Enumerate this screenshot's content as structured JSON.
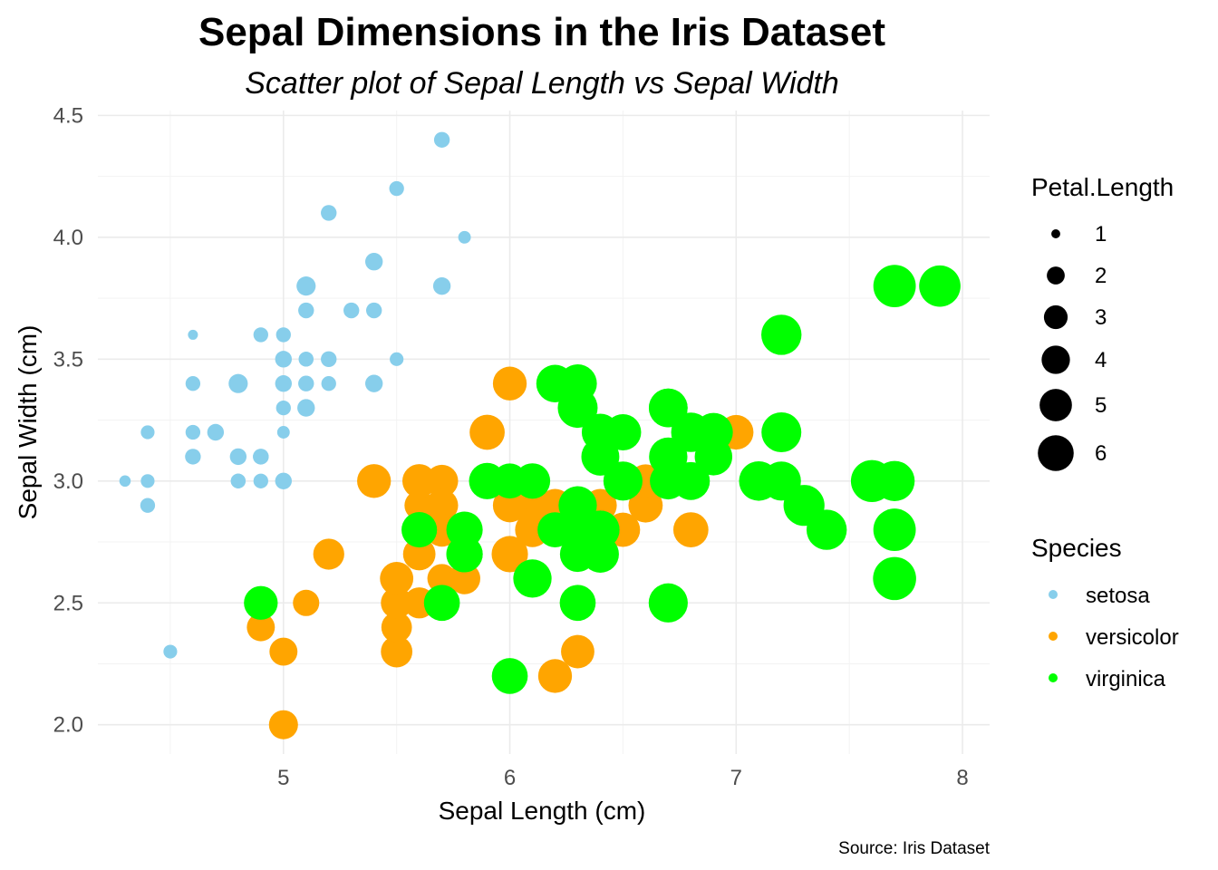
{
  "chart_data": {
    "type": "scatter",
    "title": "Sepal Dimensions in the Iris Dataset",
    "subtitle": "Scatter plot of Sepal Length vs Sepal Width",
    "xlabel": "Sepal Length (cm)",
    "ylabel": "Sepal Width (cm)",
    "caption": "Source: Iris Dataset",
    "xlim": [
      4.18,
      8.12
    ],
    "ylim": [
      1.88,
      4.52
    ],
    "x_ticks": [
      5,
      6,
      7,
      8
    ],
    "x_tick_labels": [
      "5",
      "6",
      "7",
      "8"
    ],
    "y_ticks": [
      2.0,
      2.5,
      3.0,
      3.5,
      4.0,
      4.5
    ],
    "y_tick_labels": [
      "2.0",
      "2.5",
      "3.0",
      "3.5",
      "4.0",
      "4.5"
    ],
    "grid": true,
    "legend_placement": "right",
    "size_legend": {
      "title": "Petal.Length",
      "values": [
        1,
        2,
        3,
        4,
        5,
        6
      ],
      "labels": [
        "1",
        "2",
        "3",
        "4",
        "5",
        "6"
      ]
    },
    "color_legend": {
      "title": "Species",
      "entries": [
        {
          "label": "setosa",
          "color": "#87CEEB"
        },
        {
          "label": "versicolor",
          "color": "#FFA500"
        },
        {
          "label": "virginica",
          "color": "#00FF00"
        }
      ]
    },
    "series": [
      {
        "name": "setosa",
        "color": "#87CEEB",
        "points": [
          [
            5.1,
            3.5,
            1.4
          ],
          [
            4.9,
            3.0,
            1.4
          ],
          [
            4.7,
            3.2,
            1.3
          ],
          [
            4.6,
            3.1,
            1.5
          ],
          [
            5.0,
            3.6,
            1.4
          ],
          [
            5.4,
            3.9,
            1.7
          ],
          [
            4.6,
            3.4,
            1.4
          ],
          [
            5.0,
            3.4,
            1.5
          ],
          [
            4.4,
            2.9,
            1.4
          ],
          [
            4.9,
            3.1,
            1.5
          ],
          [
            5.4,
            3.7,
            1.5
          ],
          [
            4.8,
            3.4,
            1.6
          ],
          [
            4.8,
            3.0,
            1.4
          ],
          [
            4.3,
            3.0,
            1.1
          ],
          [
            5.8,
            4.0,
            1.2
          ],
          [
            5.7,
            4.4,
            1.5
          ],
          [
            5.4,
            3.9,
            1.3
          ],
          [
            5.1,
            3.5,
            1.4
          ],
          [
            5.7,
            3.8,
            1.7
          ],
          [
            5.1,
            3.8,
            1.5
          ],
          [
            5.4,
            3.4,
            1.7
          ],
          [
            5.1,
            3.7,
            1.5
          ],
          [
            4.6,
            3.6,
            1.0
          ],
          [
            5.1,
            3.3,
            1.7
          ],
          [
            4.8,
            3.4,
            1.9
          ],
          [
            5.0,
            3.0,
            1.6
          ],
          [
            5.0,
            3.4,
            1.6
          ],
          [
            5.2,
            3.5,
            1.5
          ],
          [
            5.2,
            3.4,
            1.4
          ],
          [
            4.7,
            3.2,
            1.6
          ],
          [
            4.8,
            3.1,
            1.6
          ],
          [
            5.4,
            3.4,
            1.5
          ],
          [
            5.2,
            4.1,
            1.5
          ],
          [
            5.5,
            4.2,
            1.4
          ],
          [
            4.9,
            3.1,
            1.5
          ],
          [
            5.0,
            3.2,
            1.2
          ],
          [
            5.5,
            3.5,
            1.3
          ],
          [
            4.9,
            3.6,
            1.4
          ],
          [
            4.4,
            3.0,
            1.3
          ],
          [
            5.1,
            3.4,
            1.5
          ],
          [
            5.0,
            3.5,
            1.3
          ],
          [
            4.5,
            2.3,
            1.3
          ],
          [
            4.4,
            3.2,
            1.3
          ],
          [
            5.0,
            3.5,
            1.6
          ],
          [
            5.1,
            3.8,
            1.9
          ],
          [
            4.8,
            3.0,
            1.4
          ],
          [
            5.1,
            3.8,
            1.6
          ],
          [
            4.6,
            3.2,
            1.4
          ],
          [
            5.3,
            3.7,
            1.5
          ],
          [
            5.0,
            3.3,
            1.4
          ]
        ]
      },
      {
        "name": "versicolor",
        "color": "#FFA500",
        "points": [
          [
            7.0,
            3.2,
            4.7
          ],
          [
            6.4,
            3.2,
            4.5
          ],
          [
            6.9,
            3.1,
            4.9
          ],
          [
            5.5,
            2.3,
            4.0
          ],
          [
            6.5,
            2.8,
            4.6
          ],
          [
            5.7,
            2.8,
            4.5
          ],
          [
            6.3,
            3.3,
            4.7
          ],
          [
            4.9,
            2.4,
            3.3
          ],
          [
            6.6,
            2.9,
            4.6
          ],
          [
            5.2,
            2.7,
            3.9
          ],
          [
            5.0,
            2.0,
            3.5
          ],
          [
            5.9,
            3.0,
            4.2
          ],
          [
            6.0,
            2.2,
            4.0
          ],
          [
            6.1,
            2.9,
            4.7
          ],
          [
            5.6,
            2.9,
            3.6
          ],
          [
            6.7,
            3.1,
            4.4
          ],
          [
            5.6,
            3.0,
            4.5
          ],
          [
            5.8,
            2.7,
            4.1
          ],
          [
            6.2,
            2.2,
            4.5
          ],
          [
            5.6,
            2.5,
            3.9
          ],
          [
            5.9,
            3.2,
            4.8
          ],
          [
            6.1,
            2.8,
            4.0
          ],
          [
            6.3,
            2.5,
            4.9
          ],
          [
            6.1,
            2.8,
            4.7
          ],
          [
            6.4,
            2.9,
            4.3
          ],
          [
            6.6,
            3.0,
            4.4
          ],
          [
            6.8,
            2.8,
            4.8
          ],
          [
            6.7,
            3.0,
            5.0
          ],
          [
            6.0,
            2.9,
            4.5
          ],
          [
            5.7,
            2.6,
            3.5
          ],
          [
            5.5,
            2.4,
            3.8
          ],
          [
            5.5,
            2.4,
            3.7
          ],
          [
            5.8,
            2.7,
            3.9
          ],
          [
            6.0,
            2.7,
            5.1
          ],
          [
            5.4,
            3.0,
            4.5
          ],
          [
            6.0,
            3.4,
            4.5
          ],
          [
            6.7,
            3.1,
            4.7
          ],
          [
            6.3,
            2.3,
            4.4
          ],
          [
            5.6,
            3.0,
            4.1
          ],
          [
            5.5,
            2.5,
            4.0
          ],
          [
            5.5,
            2.6,
            4.4
          ],
          [
            6.1,
            3.0,
            4.6
          ],
          [
            5.8,
            2.6,
            4.0
          ],
          [
            5.0,
            2.3,
            3.3
          ],
          [
            5.6,
            2.7,
            4.2
          ],
          [
            5.7,
            3.0,
            4.2
          ],
          [
            5.7,
            2.9,
            4.2
          ],
          [
            6.2,
            2.9,
            4.3
          ],
          [
            5.1,
            2.5,
            3.0
          ],
          [
            5.7,
            2.8,
            4.1
          ]
        ]
      },
      {
        "name": "virginica",
        "color": "#00FF00",
        "points": [
          [
            6.3,
            3.3,
            6.0
          ],
          [
            5.8,
            2.7,
            5.1
          ],
          [
            7.1,
            3.0,
            5.9
          ],
          [
            6.3,
            2.9,
            5.6
          ],
          [
            6.5,
            3.0,
            5.8
          ],
          [
            7.6,
            3.0,
            6.6
          ],
          [
            4.9,
            2.5,
            4.5
          ],
          [
            7.3,
            2.9,
            6.3
          ],
          [
            6.7,
            2.5,
            5.8
          ],
          [
            7.2,
            3.6,
            6.1
          ],
          [
            6.5,
            3.2,
            5.1
          ],
          [
            6.4,
            2.7,
            5.3
          ],
          [
            6.8,
            3.0,
            5.5
          ],
          [
            5.7,
            2.5,
            5.0
          ],
          [
            5.8,
            2.8,
            5.1
          ],
          [
            6.4,
            3.2,
            5.3
          ],
          [
            6.5,
            3.0,
            5.5
          ],
          [
            7.7,
            3.8,
            6.7
          ],
          [
            7.7,
            2.6,
            6.9
          ],
          [
            6.0,
            2.2,
            5.0
          ],
          [
            6.9,
            3.2,
            5.7
          ],
          [
            5.6,
            2.8,
            4.9
          ],
          [
            7.7,
            2.8,
            6.7
          ],
          [
            6.3,
            2.7,
            4.9
          ],
          [
            6.7,
            3.3,
            5.7
          ],
          [
            7.2,
            3.2,
            6.0
          ],
          [
            6.2,
            2.8,
            4.8
          ],
          [
            6.1,
            3.0,
            4.9
          ],
          [
            6.4,
            2.8,
            5.6
          ],
          [
            7.2,
            3.0,
            5.8
          ],
          [
            7.4,
            2.8,
            6.1
          ],
          [
            7.9,
            3.8,
            6.4
          ],
          [
            6.4,
            2.8,
            5.6
          ],
          [
            6.3,
            2.8,
            5.1
          ],
          [
            6.1,
            2.6,
            5.6
          ],
          [
            7.7,
            3.0,
            6.1
          ],
          [
            6.3,
            3.4,
            5.6
          ],
          [
            6.4,
            3.1,
            5.5
          ],
          [
            6.0,
            3.0,
            4.8
          ],
          [
            6.9,
            3.1,
            5.4
          ],
          [
            6.7,
            3.1,
            5.6
          ],
          [
            6.9,
            3.1,
            5.1
          ],
          [
            5.8,
            2.7,
            5.1
          ],
          [
            6.8,
            3.2,
            5.9
          ],
          [
            6.7,
            3.3,
            5.7
          ],
          [
            6.7,
            3.0,
            5.2
          ],
          [
            6.3,
            2.5,
            5.0
          ],
          [
            6.5,
            3.0,
            5.2
          ],
          [
            6.2,
            3.4,
            5.4
          ],
          [
            5.9,
            3.0,
            5.1
          ]
        ]
      }
    ]
  }
}
